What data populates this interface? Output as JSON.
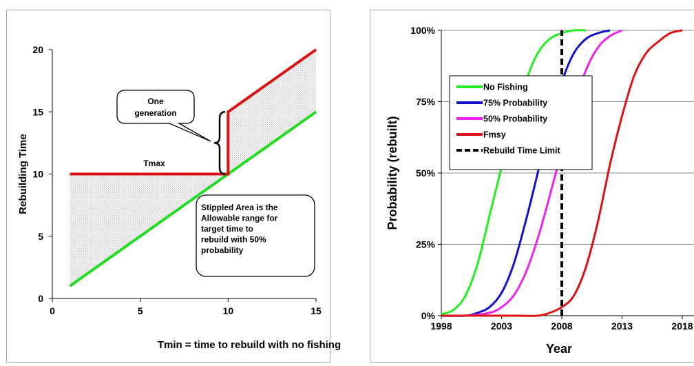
{
  "chart_data": [
    {
      "type": "line",
      "ylabel": "Rebuilding Time",
      "xlabel": "Tmin = time to rebuild with no fishing",
      "xlim": [
        0,
        15
      ],
      "ylim": [
        0,
        20
      ],
      "x_ticks": [
        "0",
        "5",
        "10",
        "15"
      ],
      "y_ticks": [
        "0",
        "5",
        "10",
        "15",
        "20"
      ],
      "grid": false,
      "series": [
        {
          "color": "#22dd22",
          "x": [
            1,
            15
          ],
          "y": [
            1,
            15
          ]
        },
        {
          "color": "#dd1111",
          "x": [
            1,
            10,
            10,
            15
          ],
          "y": [
            10,
            10,
            15,
            20
          ]
        }
      ],
      "annotations": {
        "tmax": "Tmax",
        "callout": [
          "One",
          "generation"
        ],
        "area_note": [
          "Stippled Area is the",
          "Allowable range for",
          "target time to",
          "rebuild with  50%",
          "probability"
        ]
      },
      "colors": {
        "shade": "#bdbdbd"
      }
    },
    {
      "type": "line",
      "ylabel": "Probability (rebuilt)",
      "xlabel": "Year",
      "xlim": [
        1998,
        2018
      ],
      "ylim": [
        0,
        100
      ],
      "x_ticks": [
        "1998",
        "2003",
        "2008",
        "2013",
        "2018"
      ],
      "y_ticks": [
        "0%",
        "25%",
        "50%",
        "75%",
        "100%"
      ],
      "grid": true,
      "legend_position": "upper-left",
      "series": [
        {
          "name": "No Fishing",
          "color": "#22ee22",
          "x": [
            1998,
            1999,
            2000,
            2001,
            2002,
            2003,
            2004,
            2005,
            2006,
            2007,
            2008,
            2009,
            2010
          ],
          "y": [
            0.5,
            2,
            7,
            18,
            35,
            52,
            68,
            82,
            92,
            97,
            99,
            100,
            100
          ]
        },
        {
          "name": "75% Probability",
          "color": "#1111cc",
          "x": [
            1998,
            2000,
            2001,
            2002,
            2003,
            2004,
            2005,
            2006,
            2007,
            2008,
            2009,
            2010,
            2011,
            2012
          ],
          "y": [
            0,
            0,
            1,
            3,
            8,
            18,
            33,
            50,
            68,
            82,
            92,
            97,
            99,
            100
          ]
        },
        {
          "name": "50% Probability",
          "color": "#ee22ee",
          "x": [
            1998,
            2000,
            2002,
            2003,
            2004,
            2005,
            2006,
            2007,
            2008,
            2009,
            2010,
            2011,
            2012,
            2013
          ],
          "y": [
            0,
            0,
            1,
            3,
            7,
            15,
            27,
            42,
            58,
            73,
            86,
            94,
            98,
            100
          ]
        },
        {
          "name": "Fmsy",
          "color": "#dd1111",
          "x": [
            1998,
            2004,
            2006,
            2007,
            2008,
            2009,
            2010,
            2011,
            2012,
            2013,
            2014,
            2015,
            2016,
            2017,
            2018
          ],
          "y": [
            0,
            0,
            0,
            1,
            3,
            7,
            17,
            33,
            53,
            70,
            84,
            92,
            96,
            99,
            100
          ]
        },
        {
          "name": "Rebuild Time Limit",
          "color": "#000000",
          "style": "dashed",
          "x": [
            2008,
            2008
          ],
          "y": [
            0,
            100
          ]
        }
      ]
    }
  ]
}
